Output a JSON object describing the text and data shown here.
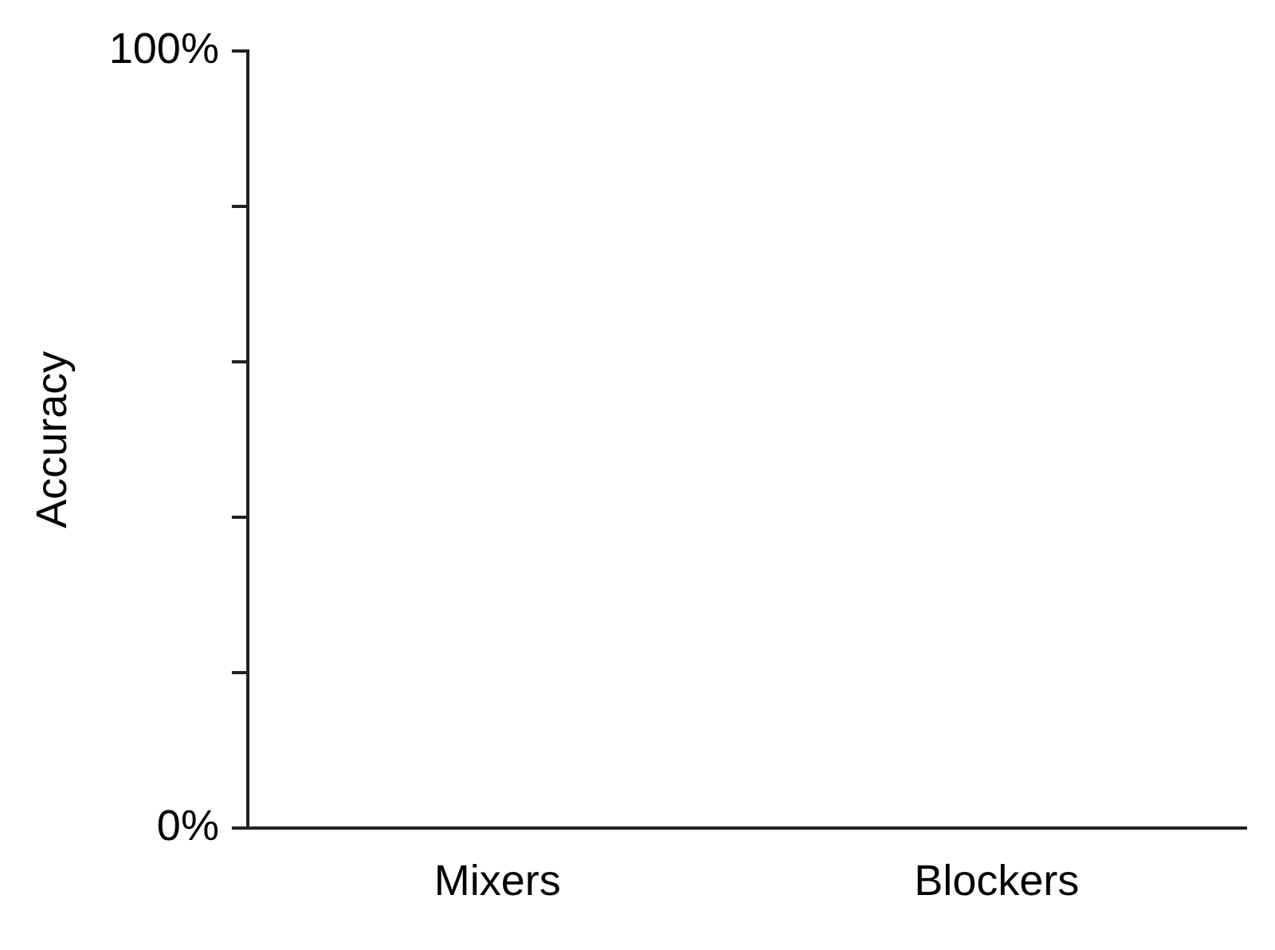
{
  "chart_data": {
    "type": "bar",
    "ylabel": "Accuracy",
    "categories": [
      "Mixers",
      "Blockers"
    ],
    "values": [
      0,
      0
    ],
    "ylim": [
      0,
      100
    ],
    "yticks": [
      {
        "value": 0,
        "label": "0%"
      },
      {
        "value": 20,
        "label": null
      },
      {
        "value": 40,
        "label": null
      },
      {
        "value": 60,
        "label": null
      },
      {
        "value": 80,
        "label": null
      },
      {
        "value": 100,
        "label": "100%"
      }
    ],
    "grid": false,
    "legend": false
  }
}
